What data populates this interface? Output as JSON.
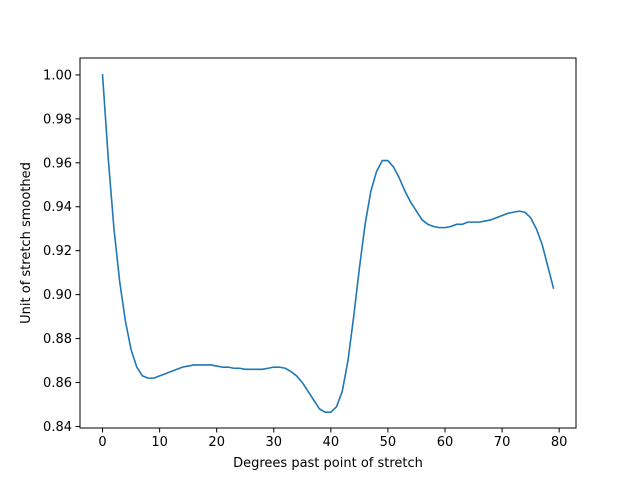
{
  "chart_data": {
    "type": "line",
    "title": "",
    "xlabel": "Degrees past point of stretch",
    "ylabel": "Unit of stretch smoothed",
    "xlim": [
      -3.95,
      82.95
    ],
    "ylim": [
      0.8393,
      1.0077
    ],
    "xticks": [
      0,
      10,
      20,
      30,
      40,
      50,
      60,
      70,
      80
    ],
    "yticks": [
      0.84,
      0.86,
      0.88,
      0.9,
      0.92,
      0.94,
      0.96,
      0.98,
      1.0
    ],
    "xtick_labels": [
      "0",
      "10",
      "20",
      "30",
      "40",
      "50",
      "60",
      "70",
      "80"
    ],
    "ytick_labels": [
      "0.84",
      "0.86",
      "0.88",
      "0.90",
      "0.92",
      "0.94",
      "0.96",
      "0.98",
      "1.00"
    ],
    "grid": false,
    "legend": "none",
    "series": [
      {
        "color": "#1f77b4",
        "x": [
          0,
          1,
          2,
          3,
          4,
          5,
          6,
          7,
          8,
          9,
          10,
          11,
          12,
          13,
          14,
          15,
          16,
          17,
          18,
          19,
          20,
          21,
          22,
          23,
          24,
          25,
          26,
          27,
          28,
          29,
          30,
          31,
          32,
          33,
          34,
          35,
          36,
          37,
          38,
          39,
          40,
          41,
          42,
          43,
          44,
          45,
          46,
          47,
          48,
          49,
          50,
          51,
          52,
          53,
          54,
          55,
          56,
          57,
          58,
          59,
          60,
          61,
          62,
          63,
          64,
          65,
          66,
          67,
          68,
          69,
          70,
          71,
          72,
          73,
          74,
          75,
          76,
          77,
          78,
          79
        ],
        "y": [
          1.0,
          0.962,
          0.93,
          0.906,
          0.888,
          0.875,
          0.867,
          0.863,
          0.862,
          0.862,
          0.863,
          0.864,
          0.865,
          0.866,
          0.867,
          0.8675,
          0.868,
          0.868,
          0.868,
          0.868,
          0.8675,
          0.867,
          0.867,
          0.8665,
          0.8665,
          0.866,
          0.866,
          0.866,
          0.866,
          0.8665,
          0.867,
          0.867,
          0.8665,
          0.865,
          0.863,
          0.86,
          0.856,
          0.852,
          0.848,
          0.8465,
          0.8465,
          0.849,
          0.856,
          0.87,
          0.89,
          0.912,
          0.932,
          0.947,
          0.956,
          0.961,
          0.961,
          0.958,
          0.953,
          0.947,
          0.942,
          0.938,
          0.934,
          0.932,
          0.931,
          0.9305,
          0.9305,
          0.931,
          0.932,
          0.932,
          0.933,
          0.933,
          0.933,
          0.9335,
          0.934,
          0.935,
          0.936,
          0.937,
          0.9375,
          0.938,
          0.9375,
          0.935,
          0.93,
          0.923,
          0.913,
          0.903
        ]
      }
    ]
  }
}
